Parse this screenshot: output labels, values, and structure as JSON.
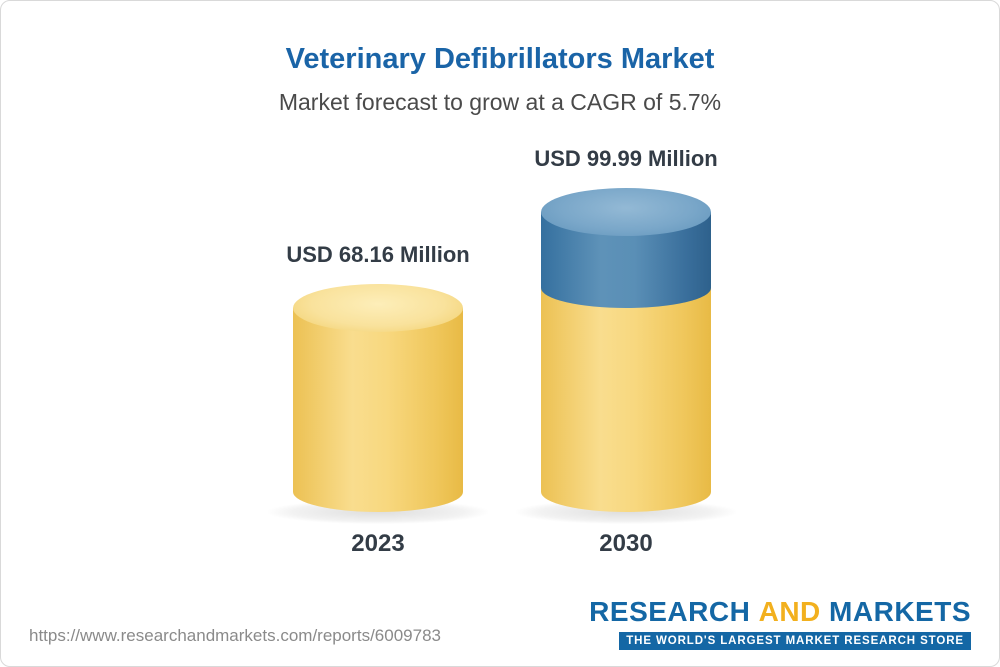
{
  "title": "Veterinary Defibrillators Market",
  "subtitle": "Market forecast to grow at a CAGR of 5.7%",
  "chart_data": {
    "type": "bar",
    "subtype": "3d-cylinder",
    "categories": [
      "2023",
      "2030"
    ],
    "values": [
      68.16,
      99.99
    ],
    "value_labels": [
      "USD 68.16 Million",
      "USD 99.99 Million"
    ],
    "title": "Veterinary Defibrillators Market",
    "subtitle": "Market forecast to grow at a CAGR of 5.7%",
    "cagr": "5.7%",
    "unit": "USD Million",
    "xlabel": "",
    "ylabel": "",
    "ylim": [
      0,
      110
    ],
    "grid": false,
    "legend": "none",
    "series_note": "2030 bar is stacked: base equals 2023 value (yellow), growth delta shown in blue",
    "colors": {
      "bar_2023": "#f5cb5e",
      "bar_2030_base": "#f5cb5e",
      "bar_2030_growth": "#3c6f9c"
    }
  },
  "footer": {
    "url": "https://www.researchandmarkets.com/reports/6009783",
    "logo": {
      "word_research": "RESEARCH",
      "word_and": "AND",
      "word_markets": "MARKETS",
      "tagline": "THE WORLD'S LARGEST MARKET RESEARCH STORE"
    }
  },
  "colors": {
    "title_blue": "#1a64a7",
    "subtitle_gray": "#4a4a4a",
    "label_dark": "#333c46",
    "logo_blue": "#1467a5",
    "logo_gold": "#f2b01e",
    "border_gray": "#d9d9d9"
  }
}
